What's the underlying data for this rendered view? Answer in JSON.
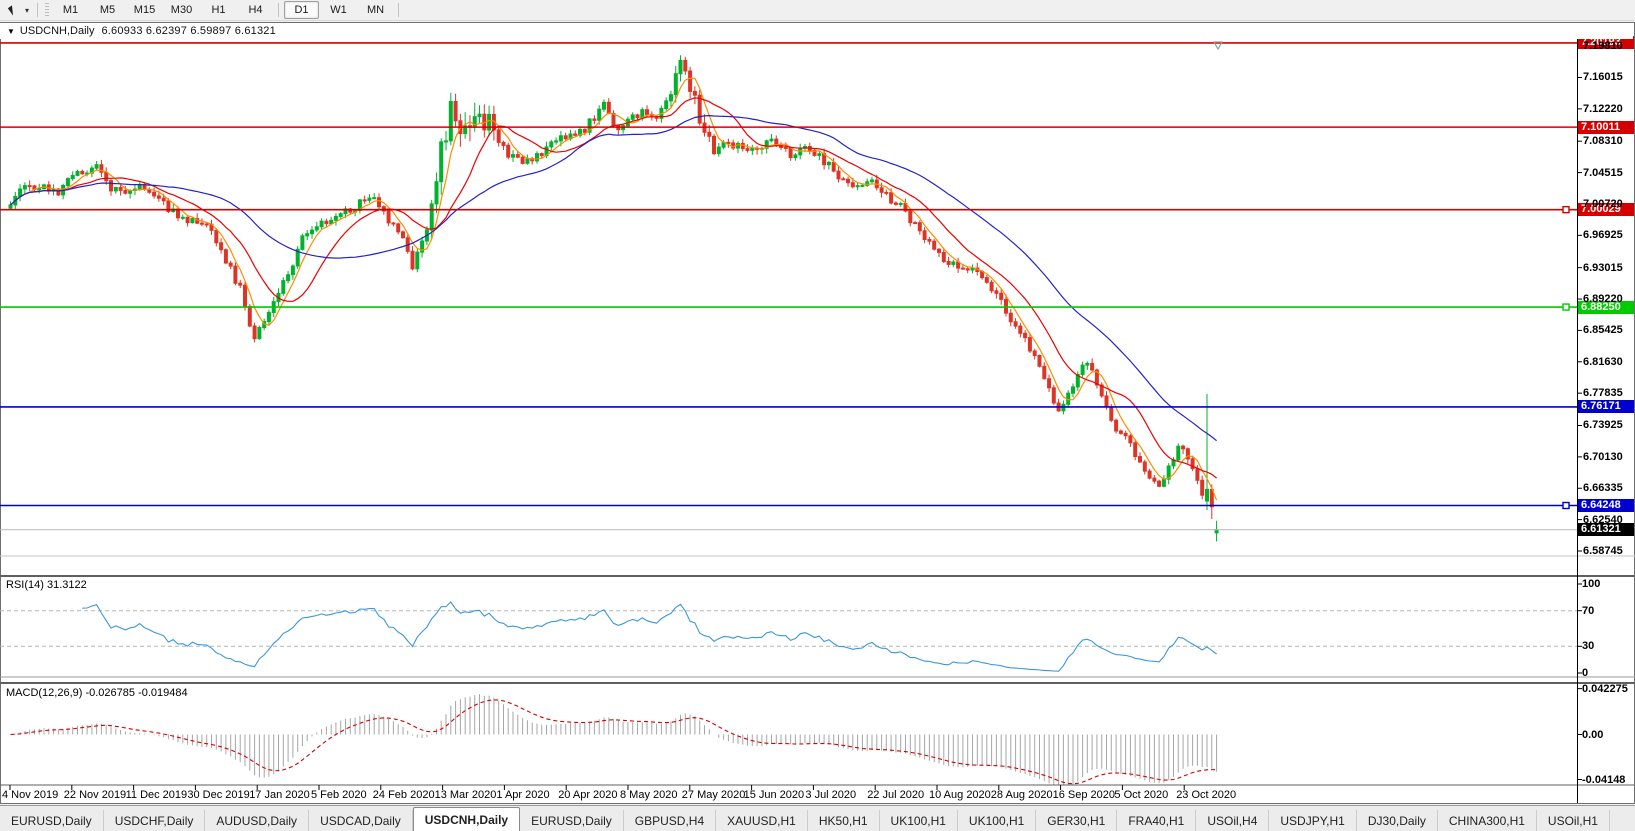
{
  "toolbar": {
    "timeframes": [
      "M1",
      "M5",
      "M15",
      "M30",
      "H1",
      "H4",
      "D1",
      "W1",
      "MN"
    ],
    "active_timeframe": "D1"
  },
  "chart": {
    "title_symbol": "USDCNH,Daily",
    "title_ohlc": "6.60933 6.62397 6.59897 6.61321"
  },
  "chart_data": {
    "type": "candlestick",
    "symbol": "USDCNH",
    "timeframe": "Daily",
    "last_bar": {
      "open": 6.60933,
      "high": 6.62397,
      "low": 6.59897,
      "close": 6.61321
    },
    "ylim": {
      "top": 7.2067,
      "bottom": 6.58745
    },
    "price_axis_ticks": [
      "7.19810",
      "7.16015",
      "7.12220",
      "7.08310",
      "7.04515",
      "7.00720",
      "6.96925",
      "6.93015",
      "6.89220",
      "6.85425",
      "6.81630",
      "6.77835",
      "6.73925",
      "6.70130",
      "6.66335",
      "6.62540",
      "6.58745"
    ],
    "x_dates": [
      "4 Nov 2019",
      "22 Nov 2019",
      "11 Dec 2019",
      "30 Dec 2019",
      "17 Jan 2020",
      "5 Feb 2020",
      "24 Feb 2020",
      "13 Mar 2020",
      "1 Apr 2020",
      "20 Apr 2020",
      "8 May 2020",
      "27 May 2020",
      "15 Jun 2020",
      "3 Jul 2020",
      "22 Jul 2020",
      "10 Aug 2020",
      "28 Aug 2020",
      "16 Sep 2020",
      "5 Oct 2020",
      "23 Oct 2020"
    ],
    "hlines": [
      {
        "price": 7.20193,
        "color": "#d40000",
        "marker": false
      },
      {
        "price": 7.10011,
        "color": "#d40000",
        "marker": false
      },
      {
        "price": 7.00029,
        "color": "#d40000",
        "marker": true
      },
      {
        "price": 6.8825,
        "color": "#00ca00",
        "marker": true
      },
      {
        "price": 6.76171,
        "color": "#0000cd",
        "marker": false
      },
      {
        "price": 6.64248,
        "color": "#0000cd",
        "marker": true
      }
    ],
    "current_price": {
      "value": 6.61321,
      "line_color": "#b8b8b8",
      "label_bg": "#000000"
    },
    "candles_total": 253,
    "close_waypoints": [
      [
        0,
        7.01
      ],
      [
        3,
        7.028
      ],
      [
        7,
        7.032
      ],
      [
        10,
        7.02
      ],
      [
        14,
        7.045
      ],
      [
        18,
        7.052
      ],
      [
        20,
        7.03
      ],
      [
        25,
        7.02
      ],
      [
        28,
        7.03
      ],
      [
        31,
        7.01
      ],
      [
        35,
        6.994
      ],
      [
        39,
        6.985
      ],
      [
        42,
        6.976
      ],
      [
        45,
        6.94
      ],
      [
        48,
        6.905
      ],
      [
        51,
        6.845
      ],
      [
        53,
        6.862
      ],
      [
        55,
        6.891
      ],
      [
        58,
        6.92
      ],
      [
        61,
        6.964
      ],
      [
        65,
        6.982
      ],
      [
        68,
        6.995
      ],
      [
        71,
        7.0
      ],
      [
        75,
        7.018
      ],
      [
        79,
        6.988
      ],
      [
        82,
        6.97
      ],
      [
        84,
        6.934
      ],
      [
        86,
        6.96
      ],
      [
        88,
        7.0
      ],
      [
        90,
        7.073
      ],
      [
        92,
        7.121
      ],
      [
        94,
        7.085
      ],
      [
        96,
        7.103
      ],
      [
        98,
        7.115
      ],
      [
        101,
        7.097
      ],
      [
        104,
        7.067
      ],
      [
        107,
        7.054
      ],
      [
        112,
        7.073
      ],
      [
        116,
        7.091
      ],
      [
        120,
        7.097
      ],
      [
        124,
        7.127
      ],
      [
        127,
        7.097
      ],
      [
        132,
        7.121
      ],
      [
        135,
        7.109
      ],
      [
        138,
        7.145
      ],
      [
        139,
        7.169
      ],
      [
        140,
        7.18
      ],
      [
        142,
        7.151
      ],
      [
        144,
        7.109
      ],
      [
        147,
        7.073
      ],
      [
        150,
        7.079
      ],
      [
        155,
        7.073
      ],
      [
        159,
        7.085
      ],
      [
        163,
        7.067
      ],
      [
        167,
        7.073
      ],
      [
        171,
        7.055
      ],
      [
        175,
        7.03
      ],
      [
        179,
        7.036
      ],
      [
        183,
        7.018
      ],
      [
        187,
        7.0
      ],
      [
        190,
        6.97
      ],
      [
        194,
        6.946
      ],
      [
        198,
        6.928
      ],
      [
        201,
        6.934
      ],
      [
        204,
        6.915
      ],
      [
        208,
        6.879
      ],
      [
        211,
        6.849
      ],
      [
        214,
        6.825
      ],
      [
        217,
        6.782
      ],
      [
        219,
        6.752
      ],
      [
        221,
        6.776
      ],
      [
        223,
        6.806
      ],
      [
        225,
        6.819
      ],
      [
        227,
        6.788
      ],
      [
        229,
        6.764
      ],
      [
        231,
        6.734
      ],
      [
        233,
        6.722
      ],
      [
        235,
        6.704
      ],
      [
        238,
        6.679
      ],
      [
        240,
        6.661
      ],
      [
        242,
        6.686
      ],
      [
        244,
        6.71
      ],
      [
        246,
        6.704
      ],
      [
        248,
        6.673
      ],
      [
        249,
        6.655
      ],
      [
        250,
        6.662
      ],
      [
        251,
        6.641
      ],
      [
        252,
        6.61321
      ]
    ],
    "volatility_zones": [
      {
        "from": 88,
        "to": 101,
        "mult": 2.6
      },
      {
        "from": 138,
        "to": 146,
        "mult": 1.7
      }
    ],
    "last_candles_ohlc": [
      {
        "i": 250,
        "o": 6.648,
        "h": 6.7775,
        "l": 6.637,
        "c": 6.662
      },
      {
        "i": 251,
        "o": 6.662,
        "h": 6.668,
        "l": 6.626,
        "c": 6.641
      },
      {
        "i": 252,
        "o": 6.60933,
        "h": 6.62397,
        "l": 6.59897,
        "c": 6.61321
      }
    ],
    "colors": {
      "candle_up": "#00b22c",
      "candle_down": "#dd3526",
      "ma_fast_orange": "#ff8c00",
      "ma_mid_red": "#ee0000",
      "ma_slow_blue": "#2323c8"
    },
    "rsi": {
      "label": "RSI(14) 31.3122",
      "period": 14,
      "value": 31.3122,
      "levels": [
        70,
        30
      ],
      "axis_ticks": [
        "100",
        "70",
        "30",
        "0"
      ],
      "color": "#3a97dd"
    },
    "macd": {
      "label": "MACD(12,26,9) -0.026785 -0.019484",
      "fast": 12,
      "slow": 26,
      "signal": 9,
      "macd_value": -0.026785,
      "signal_value": -0.019484,
      "axis_ticks": [
        {
          "v": 0.042275,
          "t": "0.042275"
        },
        {
          "v": 0,
          "t": "0.00"
        },
        {
          "v": -0.04148,
          "t": "-0.04148"
        }
      ],
      "histogram_color": "#a6a6a6",
      "signal_color": "#d40000"
    }
  },
  "tabs": {
    "active_index": 4,
    "items": [
      "EURUSD,Daily",
      "USDCHF,Daily",
      "AUDUSD,Daily",
      "USDCAD,Daily",
      "USDCNH,Daily",
      "EURUSD,Daily",
      "GBPUSD,H4",
      "XAUUSD,H1",
      "HK50,H1",
      "UK100,H1",
      "UK100,H1",
      "GER30,H1",
      "FRA40,H1",
      "USOil,H4",
      "USDJPY,H1",
      "DJ30,Daily",
      "CHINA300,H1",
      "USOil,H1"
    ]
  }
}
